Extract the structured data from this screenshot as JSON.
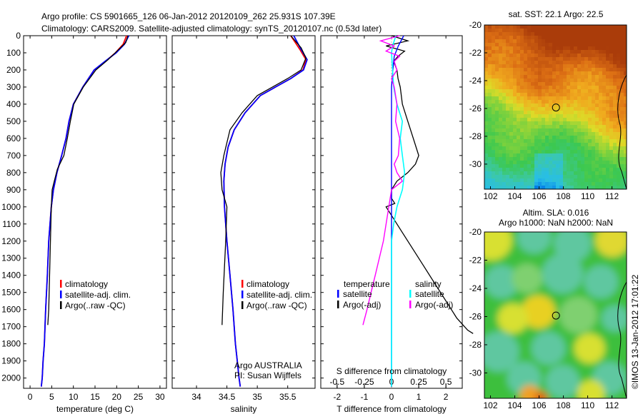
{
  "title_line1": "Argo profile: CS 5901665_126 06-Jan-2012 20120109_262 25.931S 107.39E",
  "title_line2": "Climatology: CARS2009. Satellite-adjusted climatology: synTS_20120107.nc (0.53d later)",
  "sst_title": "sat. SST: 22.1  Argo: 22.5",
  "sla_title1": "Altim. SLA: 0.016",
  "sla_title2": "Argo h1000: NaN h2000: NaN",
  "vertical_stamp": "©IMOS 13-Jan-2012 17:01:22",
  "legend_temp": {
    "items": [
      "climatology",
      "satellite-adj. clim.",
      "Argo(..raw -QC)"
    ]
  },
  "legend_sal": {
    "items": [
      "climatology",
      "satellite-adj. clim.",
      "Argo(..raw -QC)"
    ]
  },
  "argo_note1": "Argo AUSTRALIA",
  "argo_note2": "PI: Susan Wijffels",
  "legend_diff": {
    "h1": "temperature",
    "h2": "salinity",
    "items_left": [
      "satellite",
      "Argo(-adj)"
    ],
    "items_right": [
      "satellite",
      "Argo(-adj)"
    ]
  },
  "colors": {
    "climatology": "#ff0000",
    "satellite": "#0000ff",
    "argo": "#000000",
    "temp_diff": "#ff00ff",
    "sal_diff": "#00ffff"
  },
  "chart_data": [
    {
      "type": "line",
      "xlabel": "temperature (deg C)",
      "xlim": [
        -1.5,
        31.5
      ],
      "ylim": [
        2060,
        0
      ],
      "xticks": [
        0,
        5,
        10,
        15,
        20,
        25,
        30
      ],
      "yticks": [
        0,
        100,
        200,
        300,
        400,
        500,
        600,
        700,
        800,
        900,
        1000,
        1100,
        1200,
        1300,
        1400,
        1500,
        1600,
        1700,
        1800,
        1900,
        2000
      ],
      "series": [
        {
          "name": "climatology",
          "x": [
            22.3,
            21.5,
            19.7,
            17.4,
            14.8,
            12.2,
            10.0,
            9.0,
            8.3,
            7.3,
            6.2,
            5.4,
            4.9,
            4.6,
            4.3,
            4.0,
            3.6,
            3.3,
            3.0,
            2.8,
            2.6
          ],
          "y": [
            0,
            50,
            100,
            150,
            200,
            300,
            400,
            500,
            600,
            700,
            800,
            900,
            1000,
            1100,
            1200,
            1400,
            1600,
            1800,
            1900,
            2000,
            2050
          ]
        },
        {
          "name": "satellite-adj. clim.",
          "x": [
            22.8,
            21.8,
            19.9,
            17.3,
            14.8,
            12.2,
            10.0,
            9.0,
            8.3,
            7.3,
            6.2,
            5.4,
            4.9,
            4.6,
            4.3,
            4.0,
            3.6,
            3.3,
            3.0,
            2.8,
            2.6
          ],
          "y": [
            0,
            50,
            100,
            150,
            200,
            300,
            400,
            500,
            600,
            700,
            800,
            900,
            1000,
            1100,
            1200,
            1400,
            1600,
            1800,
            1900,
            2000,
            2050
          ]
        },
        {
          "name": "Argo(..raw -QC)",
          "x": [
            22.6,
            22.1,
            20.5,
            18.0,
            15.2,
            12.3,
            10.1,
            9.3,
            8.6,
            7.8,
            6.3,
            5.8,
            5.1,
            4.9,
            4.7,
            4.5,
            4.3,
            4.1
          ],
          "y": [
            0,
            40,
            80,
            140,
            200,
            300,
            400,
            500,
            600,
            700,
            780,
            830,
            900,
            1000,
            1200,
            1400,
            1600,
            1690
          ]
        }
      ]
    },
    {
      "type": "line",
      "xlabel": "salinity",
      "xlim": [
        33.6,
        35.95
      ],
      "ylim": [
        2060,
        0
      ],
      "xticks": [
        34,
        34.5,
        35,
        35.5
      ],
      "series": [
        {
          "name": "climatology",
          "x": [
            35.55,
            35.7,
            35.8,
            35.75,
            35.55,
            35.3,
            35.05,
            34.8,
            34.62,
            34.52,
            34.47,
            34.45,
            34.46,
            34.5,
            34.55,
            34.6,
            34.64,
            34.67,
            34.7,
            34.72
          ],
          "y": [
            0,
            80,
            140,
            200,
            250,
            300,
            350,
            450,
            550,
            650,
            750,
            850,
            1000,
            1200,
            1400,
            1600,
            1800,
            1900,
            2000,
            2050
          ]
        },
        {
          "name": "satellite-adj. clim.",
          "x": [
            35.6,
            35.72,
            35.82,
            35.76,
            35.55,
            35.3,
            35.05,
            34.8,
            34.62,
            34.52,
            34.47,
            34.45,
            34.46,
            34.5,
            34.55,
            34.6,
            34.64,
            34.67,
            34.7,
            34.72
          ],
          "y": [
            0,
            80,
            140,
            200,
            250,
            300,
            350,
            450,
            550,
            650,
            750,
            850,
            1000,
            1200,
            1400,
            1600,
            1800,
            1900,
            2000,
            2050
          ]
        },
        {
          "name": "Argo(..raw -QC)",
          "x": [
            35.55,
            35.72,
            35.8,
            35.72,
            35.5,
            35.25,
            35.0,
            34.75,
            34.55,
            34.45,
            34.4,
            34.42,
            34.5,
            34.48,
            34.44,
            34.42
          ],
          "y": [
            0,
            70,
            130,
            200,
            250,
            300,
            350,
            450,
            550,
            700,
            800,
            900,
            1000,
            1200,
            1500,
            1690
          ]
        }
      ]
    },
    {
      "type": "line",
      "xlabel": "T difference from climatology",
      "x2label": "S difference from climatology",
      "xlim": [
        -2.6,
        2.6
      ],
      "x2lim": [
        -0.65,
        0.65
      ],
      "ylim": [
        2060,
        0
      ],
      "xticks": [
        -2,
        -1,
        0,
        1,
        2
      ],
      "x2ticks": [
        -0.5,
        -0.25,
        0,
        0.25,
        0.5
      ],
      "series": [
        {
          "name": "temperature satellite",
          "axis": "T",
          "x": [
            0.45,
            0.25,
            0.1,
            0.05,
            0.0,
            0.0,
            0.0,
            0.0,
            0.0,
            0.0
          ],
          "y": [
            0,
            60,
            120,
            200,
            300,
            400,
            600,
            1000,
            1500,
            2050
          ]
        },
        {
          "name": "temperature Argo(-adj)",
          "axis": "T",
          "x": [
            0.3,
            -0.4,
            0.1,
            -0.2,
            0.3,
            0.1,
            0.2,
            0.0,
            0.1,
            0.2,
            0.15,
            0.3,
            0.25,
            0.1,
            0.2,
            0.4,
            0.0,
            -0.1,
            -0.2,
            -0.3,
            -0.45,
            -0.6,
            -0.75,
            -0.9,
            -1.05
          ],
          "y": [
            0,
            30,
            60,
            90,
            120,
            150,
            200,
            250,
            300,
            400,
            500,
            600,
            700,
            750,
            800,
            850,
            900,
            1000,
            1100,
            1200,
            1300,
            1400,
            1500,
            1600,
            1690
          ]
        },
        {
          "name": "salinity satellite",
          "axis": "S",
          "x": [
            0.04,
            0.01,
            0.0,
            0.01,
            0.02,
            0.05,
            0.1,
            0.09,
            0.08,
            0.1,
            0.12,
            0.1,
            0.05,
            0.02,
            0.0,
            0.0,
            0.0
          ],
          "y": [
            0,
            60,
            100,
            200,
            300,
            400,
            500,
            550,
            600,
            700,
            800,
            900,
            1000,
            1100,
            1200,
            1500,
            2050
          ]
        },
        {
          "name": "salinity Argo(-adj)",
          "axis": "S",
          "x": [
            0.0,
            0.15,
            -0.05,
            0.12,
            0.06,
            0.02,
            0.05,
            0.06,
            0.08,
            0.1,
            0.15,
            0.2,
            0.25,
            0.22,
            0.15,
            0.05,
            0.0,
            0.0,
            0.03,
            -0.05,
            0.0,
            0.1,
            0.2,
            0.3,
            0.4,
            0.5,
            0.6,
            0.7,
            0.75
          ],
          "y": [
            0,
            30,
            60,
            90,
            120,
            150,
            200,
            250,
            300,
            400,
            500,
            600,
            700,
            750,
            800,
            850,
            900,
            950,
            980,
            1000,
            1050,
            1150,
            1250,
            1350,
            1450,
            1550,
            1650,
            1720,
            1740
          ]
        }
      ]
    },
    {
      "type": "heatmap",
      "title": "sat. SST: 22.1  Argo: 22.5",
      "xlim": [
        101.5,
        113.2
      ],
      "ylim": [
        -31.8,
        -20
      ],
      "xticks": [
        102,
        104,
        106,
        108,
        110,
        112
      ],
      "yticks": [
        -20,
        -22,
        -24,
        -26,
        -28,
        -30
      ],
      "argo_position": [
        107.39,
        -25.93
      ]
    },
    {
      "type": "heatmap",
      "title": "Altim. SLA: 0.016",
      "xlim": [
        101.5,
        113.2
      ],
      "ylim": [
        -31.8,
        -20
      ],
      "xticks": [
        102,
        104,
        106,
        108,
        110,
        112
      ],
      "yticks": [
        -20,
        -22,
        -24,
        -26,
        -28,
        -30
      ],
      "argo_position": [
        107.39,
        -25.93
      ]
    }
  ]
}
